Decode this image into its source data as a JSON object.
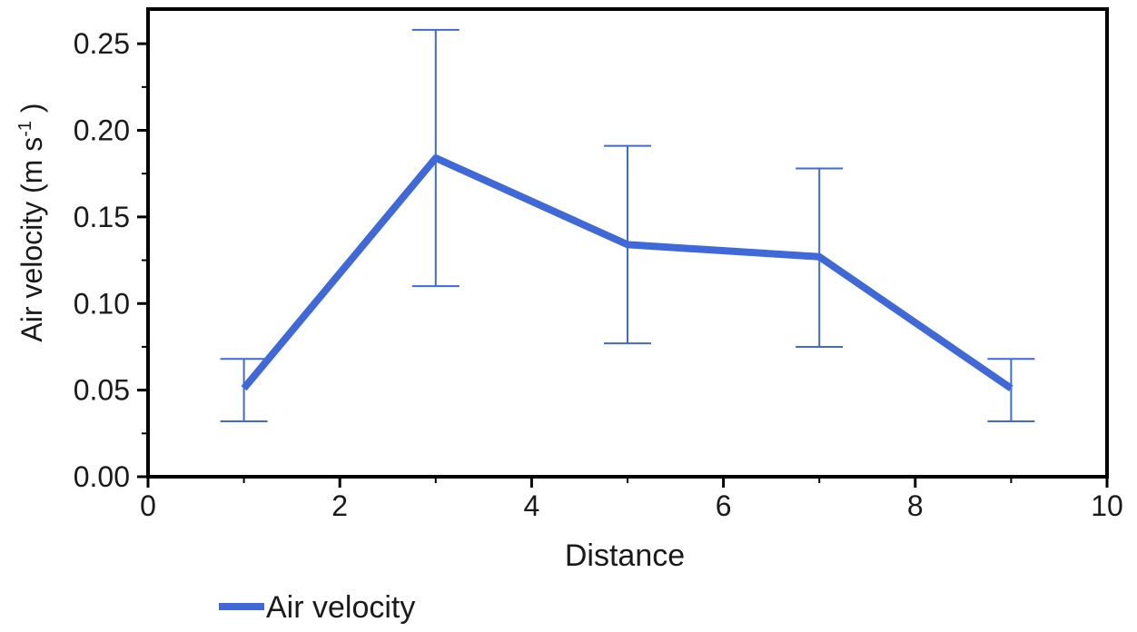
{
  "chart_data": {
    "type": "line",
    "title": "",
    "xlabel": "Distance",
    "ylabel": "Air velocity (m s",
    "ylabel_superscript": "-1",
    "ylabel_close": " )",
    "xlim": [
      0,
      10
    ],
    "ylim": [
      0,
      0.27
    ],
    "xticks": [
      0,
      2,
      4,
      6,
      8,
      10
    ],
    "xtick_labels": [
      "0",
      "2",
      "4",
      "6",
      "8",
      "10"
    ],
    "yticks": [
      0.0,
      0.05,
      0.1,
      0.15,
      0.2,
      0.25
    ],
    "ytick_labels": [
      "0.00",
      "0.05",
      "0.10",
      "0.15",
      "0.20",
      "0.25"
    ],
    "grid": false,
    "legend_position": "bottom-left",
    "series": [
      {
        "name": "Air velocity",
        "color": "#3f69d9",
        "x": [
          1,
          3,
          5,
          7,
          9
        ],
        "y": [
          0.051,
          0.184,
          0.134,
          0.127,
          0.051
        ],
        "err_low": [
          0.032,
          0.11,
          0.077,
          0.075,
          0.032
        ],
        "err_high": [
          0.068,
          0.258,
          0.191,
          0.178,
          0.068
        ]
      }
    ]
  }
}
